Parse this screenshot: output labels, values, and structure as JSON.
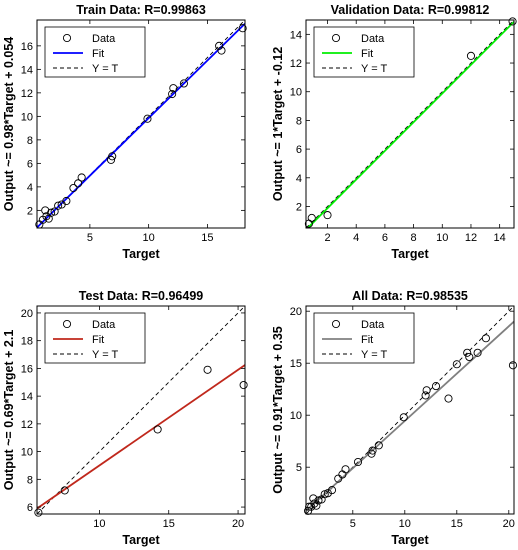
{
  "chart_data": [
    {
      "type": "scatter",
      "title": "Train Data: R=0.99863",
      "xlabel": "Target",
      "ylabel": "Output ~= 0.98*Target + 0.054",
      "xlim": [
        0.5,
        18.2
      ],
      "ylim": [
        0.5,
        18.2
      ],
      "xticks": [
        5,
        10,
        15
      ],
      "yticks": [
        2,
        4,
        6,
        8,
        10,
        12,
        14,
        16
      ],
      "fit": {
        "slope": 0.98,
        "intercept": 0.054,
        "color": "#0000ff"
      },
      "legend": {
        "placement": "top-left",
        "entries": [
          "Data",
          "Fit",
          "Y = T"
        ]
      },
      "x": [
        0.7,
        1.0,
        1.2,
        1.3,
        1.5,
        1.7,
        2.0,
        2.3,
        2.6,
        3.0,
        3.6,
        4.0,
        4.3,
        6.8,
        6.9,
        9.9,
        12.0,
        12.1,
        13.0,
        16.0,
        16.2,
        18.0
      ],
      "y": [
        0.8,
        1.2,
        2.0,
        1.5,
        1.3,
        1.8,
        1.9,
        2.4,
        2.5,
        2.8,
        3.9,
        4.3,
        4.8,
        6.3,
        6.6,
        9.8,
        11.9,
        12.4,
        12.8,
        16.0,
        15.6,
        17.5
      ]
    },
    {
      "type": "scatter",
      "title": "Validation Data: R=0.99812",
      "xlabel": "Target",
      "ylabel": "Output ~= 1*Target + -0.12",
      "xlim": [
        0.5,
        15.0
      ],
      "ylim": [
        0.5,
        15.0
      ],
      "xticks": [
        2,
        4,
        6,
        8,
        10,
        12,
        14
      ],
      "yticks": [
        2,
        4,
        6,
        8,
        10,
        12,
        14
      ],
      "fit": {
        "slope": 1.0,
        "intercept": -0.12,
        "color": "#00ee00"
      },
      "legend": {
        "placement": "top-left",
        "entries": [
          "Data",
          "Fit",
          "Y = T"
        ]
      },
      "x": [
        0.7,
        0.9,
        2.0,
        12.0,
        14.9
      ],
      "y": [
        0.8,
        1.2,
        1.4,
        12.5,
        14.9
      ]
    },
    {
      "type": "scatter",
      "title": "Test Data: R=0.96499",
      "xlabel": "Target",
      "ylabel": "Output ~= 0.69*Target + 2.1",
      "xlim": [
        5.5,
        20.5
      ],
      "ylim": [
        5.5,
        20.5
      ],
      "xticks": [
        10,
        15,
        20
      ],
      "yticks": [
        6,
        8,
        10,
        12,
        14,
        16,
        18,
        20
      ],
      "fit": {
        "slope": 0.69,
        "intercept": 2.1,
        "color": "#c0281c"
      },
      "legend": {
        "placement": "top-left",
        "entries": [
          "Data",
          "Fit",
          "Y = T"
        ]
      },
      "x": [
        5.6,
        7.5,
        14.2,
        17.8,
        20.4
      ],
      "y": [
        5.6,
        7.2,
        11.6,
        15.9,
        14.8
      ]
    },
    {
      "type": "scatter",
      "title": "All Data: R=0.98535",
      "xlabel": "Target",
      "ylabel": "Output ~= 0.91*Target + 0.35",
      "xlim": [
        0.5,
        20.5
      ],
      "ylim": [
        0.5,
        20.5
      ],
      "xticks": [
        5,
        10,
        15,
        20
      ],
      "yticks": [
        5,
        10,
        15,
        20
      ],
      "fit": {
        "slope": 0.91,
        "intercept": 0.35,
        "color": "#808080"
      },
      "legend": {
        "placement": "top-left",
        "entries": [
          "Data",
          "Fit",
          "Y = T"
        ]
      },
      "x": [
        0.7,
        0.8,
        1.0,
        1.2,
        1.3,
        1.5,
        1.7,
        2.0,
        2.3,
        2.6,
        3.0,
        3.6,
        4.0,
        4.3,
        5.5,
        6.8,
        6.9,
        7.5,
        9.9,
        12.0,
        12.1,
        13.0,
        14.2,
        15.0,
        16.0,
        16.2,
        17.0,
        17.8,
        20.4
      ],
      "y": [
        0.8,
        1.2,
        1.2,
        2.0,
        1.5,
        1.3,
        1.8,
        1.9,
        2.4,
        2.5,
        2.8,
        3.9,
        4.3,
        4.8,
        5.5,
        6.3,
        6.6,
        7.1,
        9.8,
        11.9,
        12.4,
        12.8,
        11.6,
        14.9,
        16.0,
        15.6,
        16.0,
        17.4,
        14.8
      ]
    }
  ]
}
